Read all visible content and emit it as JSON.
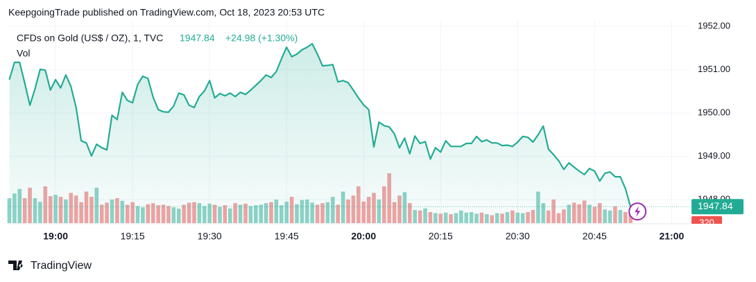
{
  "header": {
    "text": "KeepgoingTrade published on TradingView.com, Oct 18, 2023 20:53 UTC"
  },
  "chart_data": {
    "type": "line",
    "title": "CFDs on Gold (US$ / OZ), 1, TVC",
    "change": "+24.98 (+1.30%)",
    "color": "#22ab94",
    "x": [
      1131,
      1132,
      1133,
      1134,
      1135,
      1136,
      1137,
      1138,
      1139,
      1140,
      1141,
      1142,
      1143,
      1144,
      1145,
      1146,
      1147,
      1148,
      1149,
      1150,
      1151,
      1152,
      1153,
      1154,
      1155,
      1156,
      1157,
      1158,
      1159,
      1160,
      1161,
      1162,
      1163,
      1164,
      1165,
      1166,
      1167,
      1168,
      1169,
      1170,
      1171,
      1172,
      1173,
      1174,
      1175,
      1176,
      1177,
      1178,
      1179,
      1180,
      1181,
      1182,
      1183,
      1184,
      1185,
      1186,
      1187,
      1188,
      1189,
      1190,
      1191,
      1192,
      1193,
      1194,
      1195,
      1196,
      1197,
      1198,
      1199,
      1200,
      1201,
      1202,
      1203,
      1204,
      1205,
      1206,
      1207,
      1208,
      1209,
      1210,
      1211,
      1212,
      1213,
      1214,
      1215,
      1216,
      1217,
      1218,
      1219,
      1220,
      1221,
      1222,
      1223,
      1224,
      1225,
      1226,
      1227,
      1228,
      1229,
      1230,
      1231,
      1232,
      1233,
      1234,
      1235,
      1236,
      1237,
      1238,
      1239,
      1240,
      1241,
      1242,
      1243,
      1244,
      1245,
      1246,
      1247,
      1248,
      1249,
      1250,
      1251,
      1252
    ],
    "values": [
      1950.77,
      1951.17,
      1951.17,
      1950.69,
      1950.18,
      1950.56,
      1951.01,
      1950.99,
      1950.53,
      1950.77,
      1950.58,
      1950.88,
      1950.61,
      1950.13,
      1949.36,
      1949.31,
      1949.01,
      1949.28,
      1949.2,
      1949.15,
      1949.95,
      1949.85,
      1950.48,
      1950.29,
      1950.24,
      1950.66,
      1950.85,
      1950.8,
      1950.37,
      1950.08,
      1950.03,
      1950.02,
      1950.16,
      1950.46,
      1950.42,
      1950.18,
      1950.13,
      1950.38,
      1950.51,
      1950.75,
      1950.35,
      1950.45,
      1950.4,
      1950.46,
      1950.38,
      1950.48,
      1950.43,
      1950.53,
      1950.64,
      1950.75,
      1950.88,
      1950.82,
      1950.96,
      1951.25,
      1951.52,
      1951.3,
      1951.36,
      1951.46,
      1951.52,
      1951.6,
      1951.36,
      1951.09,
      1951.1,
      1951.12,
      1950.72,
      1950.75,
      1950.7,
      1950.53,
      1950.35,
      1950.19,
      1950.08,
      1949.22,
      1949.79,
      1949.71,
      1949.68,
      1949.52,
      1949.2,
      1949.42,
      1949.06,
      1949.47,
      1949.3,
      1949.34,
      1948.94,
      1949.2,
      1949.1,
      1949.36,
      1949.23,
      1949.23,
      1949.23,
      1949.3,
      1949.3,
      1949.46,
      1949.34,
      1949.38,
      1949.31,
      1949.31,
      1949.25,
      1949.26,
      1949.23,
      1949.33,
      1949.46,
      1949.44,
      1949.33,
      1949.5,
      1949.7,
      1949.17,
      1949.04,
      1948.9,
      1948.7,
      1948.85,
      1948.75,
      1948.66,
      1948.58,
      1948.72,
      1948.66,
      1948.43,
      1948.61,
      1948.64,
      1948.53,
      1948.53,
      1948.26,
      1947.84
    ],
    "volume": {
      "name": "Vol",
      "up_color": "#8fd3c7",
      "down_color": "#f2a3a3",
      "values": [
        950,
        1130,
        1300,
        950,
        1350,
        950,
        810,
        1400,
        1030,
        1080,
        1000,
        900,
        1150,
        1050,
        800,
        1200,
        1000,
        1350,
        700,
        780,
        900,
        950,
        850,
        700,
        800,
        650,
        600,
        720,
        760,
        680,
        700,
        650,
        600,
        550,
        700,
        780,
        800,
        760,
        650,
        740,
        700,
        620,
        680,
        560,
        760,
        700,
        740,
        650,
        680,
        700,
        760,
        800,
        900,
        680,
        820,
        1000,
        720,
        880,
        900,
        780,
        700,
        760,
        800,
        1000,
        700,
        1200,
        900,
        1050,
        1400,
        820,
        1000,
        1150,
        900,
        1400,
        1900,
        800,
        1050,
        1180,
        760,
        500,
        480,
        560,
        420,
        380,
        360,
        400,
        340,
        380,
        480,
        400,
        420,
        360,
        400,
        340,
        300,
        380,
        360,
        420,
        480,
        400,
        380,
        420,
        500,
        1200,
        760,
        480,
        900,
        380,
        520,
        700,
        780,
        720,
        860,
        700,
        620,
        760,
        520,
        480,
        640,
        500,
        420,
        320
      ]
    },
    "xlim": [
      1130.8,
      1263.6
    ],
    "xticks": [
      {
        "value": 1140,
        "label": "19:00"
      },
      {
        "value": 1155,
        "label": "19:15"
      },
      {
        "value": 1170,
        "label": "19:30"
      },
      {
        "value": 1185,
        "label": "19:45"
      },
      {
        "value": 1200,
        "label": "20:00"
      },
      {
        "value": 1215,
        "label": "20:15"
      },
      {
        "value": 1230,
        "label": "20:30"
      },
      {
        "value": 1245,
        "label": "20:45"
      },
      {
        "value": 1260,
        "label": "21:00"
      }
    ],
    "ylim": [
      1947.46,
      1952.13
    ],
    "yticks": [
      {
        "value": 1952,
        "label": "1952.00"
      },
      {
        "value": 1951,
        "label": "1951.00"
      },
      {
        "value": 1950,
        "label": "1950.00"
      },
      {
        "value": 1949,
        "label": "1949.00"
      },
      {
        "value": 1948,
        "label": "1948.00"
      }
    ],
    "grid": true
  },
  "footer": {
    "brand": "TradingView"
  }
}
